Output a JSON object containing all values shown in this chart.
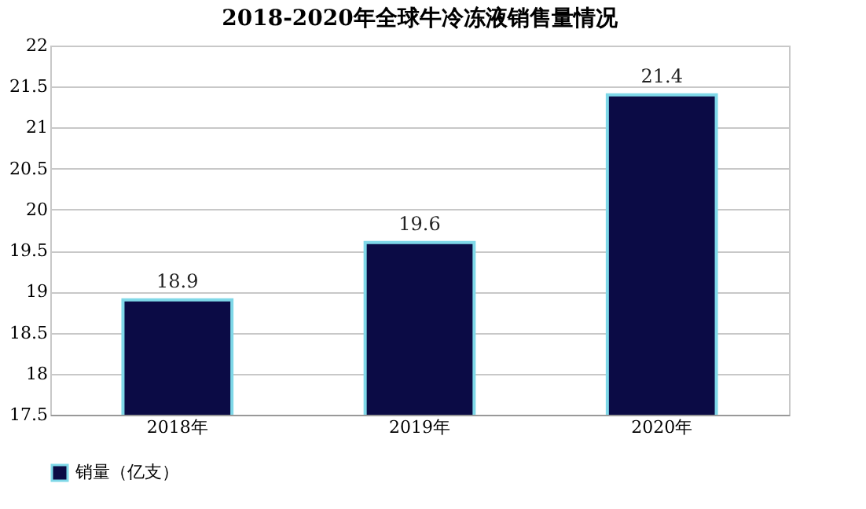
{
  "chart_data": {
    "type": "bar",
    "title": "2018-2020年全球牛冷冻液销售量情况",
    "categories": [
      "2018年",
      "2019年",
      "2020年"
    ],
    "series": [
      {
        "name": "销量（亿支）",
        "color": "#0b0b45",
        "values": [
          18.9,
          19.6,
          21.4
        ]
      }
    ],
    "ylim": [
      17.5,
      22
    ],
    "yticks": [
      17.5,
      18,
      18.5,
      19,
      19.5,
      20,
      20.5,
      21,
      21.5,
      22
    ],
    "grid": "y",
    "legend": "bottom",
    "data_labels": true
  }
}
